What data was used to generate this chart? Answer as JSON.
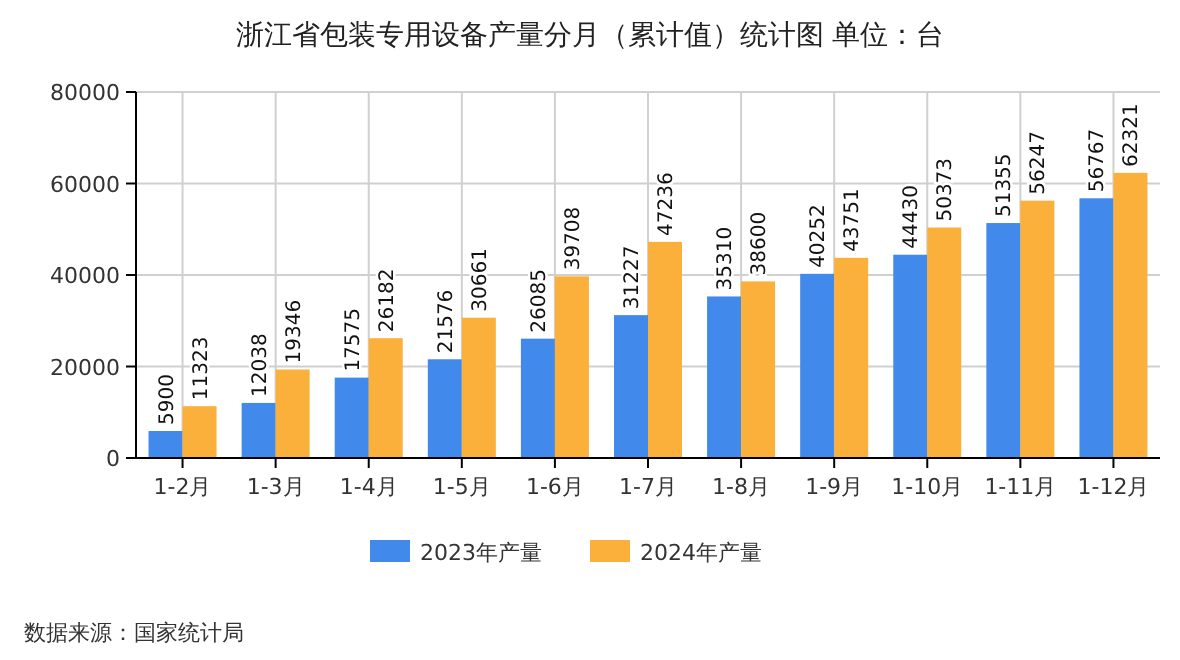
{
  "chart_data": {
    "type": "bar",
    "title": "浙江省包装专用设备产量分月（累计值）统计图 单位：台",
    "categories": [
      "1-2月",
      "1-3月",
      "1-4月",
      "1-5月",
      "1-6月",
      "1-7月",
      "1-8月",
      "1-9月",
      "1-10月",
      "1-11月",
      "1-12月"
    ],
    "series": [
      {
        "name": "2023年产量",
        "color": "#4189eb",
        "values": [
          5900,
          12038,
          17575,
          21576,
          26085,
          31227,
          35310,
          40252,
          44430,
          51355,
          56767
        ]
      },
      {
        "name": "2024年产量",
        "color": "#fbb03b",
        "values": [
          11323,
          19346,
          26182,
          30661,
          39708,
          47236,
          38600,
          43751,
          50373,
          56247,
          62321
        ]
      }
    ],
    "ylim": [
      0,
      80000
    ],
    "yticks": [
      0,
      20000,
      40000,
      60000,
      80000
    ],
    "grid": true,
    "legend": "bottom",
    "data_labels": true,
    "annotations": [
      "数据来源：国家统计局"
    ]
  }
}
